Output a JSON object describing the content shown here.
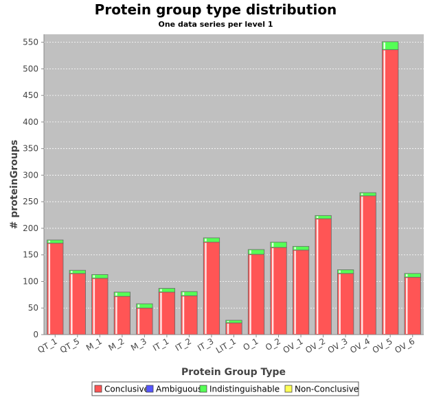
{
  "colors": {
    "plot_background": "#c0c0c0",
    "gridline": "#ffffff",
    "conclusive": "#ff5555",
    "ambiguous": "#5555ff",
    "indistinguishable": "#55ff55",
    "non_conclusive": "#ffff55"
  },
  "chart_data": {
    "type": "bar",
    "stacked": true,
    "title": "Protein group type distribution",
    "subtitle": "One data series per level 1",
    "xlabel": "Protein Group Type",
    "ylabel": "# proteinGroups",
    "ylim": [
      0,
      565
    ],
    "yticks": [
      0,
      50,
      100,
      150,
      200,
      250,
      300,
      350,
      400,
      450,
      500,
      550
    ],
    "grid": true,
    "legend_position": "bottom",
    "categories": [
      "QT_1",
      "QT_5",
      "M_1",
      "M_2",
      "M_3",
      "IT_1",
      "IT_2",
      "IT_3",
      "LIT_1",
      "O_1",
      "O_2",
      "OV_1",
      "OV_2",
      "OV_3",
      "OV_4",
      "OV_5",
      "OV_6"
    ],
    "series": [
      {
        "name": "Conclusive",
        "color": "#ff5555",
        "values": [
          172,
          115,
          106,
          72,
          50,
          80,
          73,
          174,
          22,
          151,
          164,
          159,
          218,
          115,
          261,
          536,
          108
        ]
      },
      {
        "name": "Ambiguous",
        "color": "#5555ff",
        "values": [
          0,
          0,
          0,
          0,
          0,
          0,
          0,
          0,
          0,
          0,
          0,
          0,
          0,
          0,
          0,
          0,
          0
        ]
      },
      {
        "name": "Indistinguishable",
        "color": "#55ff55",
        "values": [
          6,
          6,
          7,
          8,
          8,
          7,
          8,
          8,
          5,
          9,
          10,
          7,
          6,
          7,
          6,
          15,
          7
        ]
      },
      {
        "name": "Non-Conclusive",
        "color": "#ffff55",
        "values": [
          0,
          0,
          0,
          0,
          0,
          0,
          0,
          0,
          0,
          0,
          0,
          0,
          0,
          0,
          0,
          0,
          0
        ]
      }
    ]
  }
}
